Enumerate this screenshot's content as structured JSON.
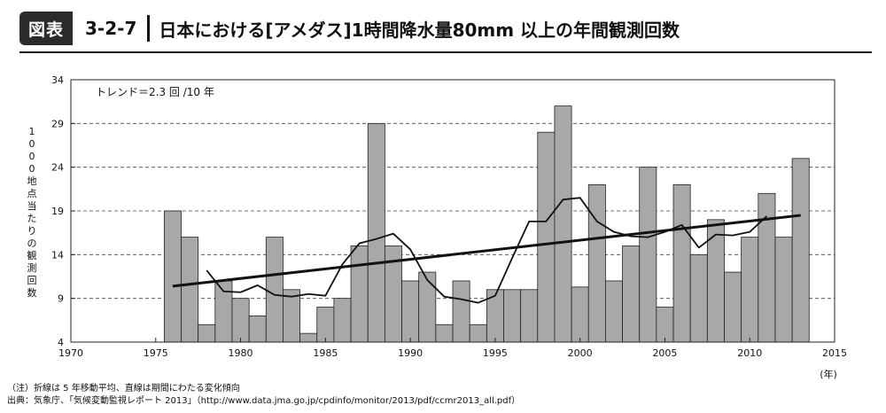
{
  "header": {
    "badge": "図表",
    "figure_number": "3-2-7",
    "title": "日本における[アメダス]1時間降水量80mm 以上の年間観測回数"
  },
  "notes": {
    "note": "（注）折線は 5 年移動平均、直線は期間にわたる変化傾向",
    "source": "出典：気象庁、「気候変動監視レポート 2013」（http://www.data.jma.go.jp/cpdinfo/monitor/2013/pdf/ccmr2013_all.pdf）"
  },
  "chart_data": {
    "type": "bar",
    "title": "",
    "ylabel": "1000地点当たりの観測回数",
    "xlabel": "(年)",
    "xlim": [
      1970,
      2015
    ],
    "ylim": [
      4,
      34
    ],
    "xticks": [
      "1970",
      "1975",
      "1980",
      "1985",
      "1990",
      "1995",
      "2000",
      "2005",
      "2010",
      "2015"
    ],
    "yticks": [
      "4",
      "9",
      "14",
      "19",
      "24",
      "29",
      "34"
    ],
    "grid": "horizontal dashed",
    "annotation": "トレンド＝2.3 回 /10 年",
    "colors": {
      "bars": "#a8a8a8",
      "line": "#111111",
      "trend": "#111111"
    },
    "bars": {
      "years": [
        1976,
        1977,
        1978,
        1979,
        1980,
        1981,
        1982,
        1983,
        1984,
        1985,
        1986,
        1987,
        1988,
        1989,
        1990,
        1991,
        1992,
        1993,
        1994,
        1995,
        1996,
        1997,
        1998,
        1999,
        2000,
        2001,
        2002,
        2003,
        2004,
        2005,
        2006,
        2007,
        2008,
        2009,
        2010,
        2011,
        2012,
        2013
      ],
      "values": [
        19,
        16,
        6,
        11,
        9,
        7,
        16,
        10,
        5,
        8,
        9,
        15,
        29,
        15,
        11,
        12,
        6,
        11,
        6,
        10,
        10,
        10,
        28,
        31,
        10.3,
        22,
        11,
        15,
        24,
        8,
        22,
        14,
        18,
        12,
        16,
        21,
        16,
        25
      ]
    },
    "moving_average": {
      "years": [
        1978,
        1979,
        1980,
        1981,
        1982,
        1983,
        1984,
        1985,
        1986,
        1987,
        1988,
        1989,
        1990,
        1991,
        1992,
        1993,
        1994,
        1995,
        1996,
        1997,
        1998,
        1999,
        2000,
        2001,
        2002,
        2003,
        2004,
        2005,
        2006,
        2007,
        2008,
        2009,
        2010,
        2011
      ],
      "values": [
        12.2,
        9.8,
        9.7,
        10.5,
        9.4,
        9.2,
        9.5,
        9.3,
        12.9,
        15.3,
        15.8,
        16.4,
        14.6,
        11.1,
        9.2,
        8.9,
        8.5,
        9.3,
        13.6,
        17.8,
        17.8,
        20.3,
        20.5,
        17.8,
        16.6,
        16.1,
        16.0,
        16.6,
        17.4,
        14.8,
        16.3,
        16.2,
        16.6,
        18.4
      ]
    },
    "trend": {
      "x": [
        1976,
        2013
      ],
      "y": [
        10.4,
        18.5
      ]
    }
  }
}
